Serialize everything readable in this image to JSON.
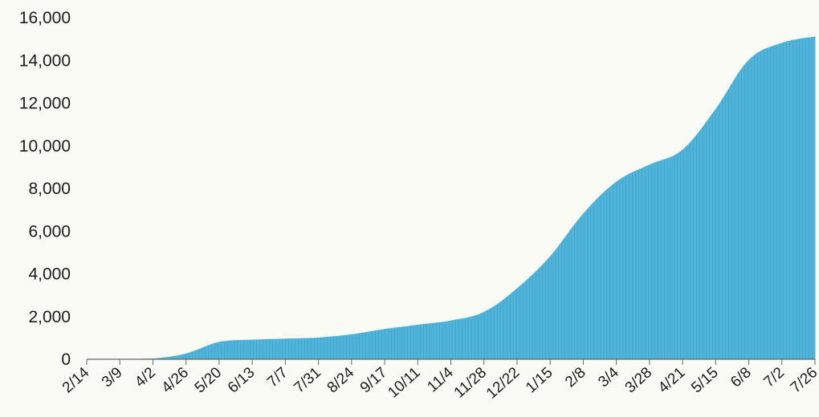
{
  "chart_data": {
    "type": "area",
    "title": "",
    "xlabel": "",
    "ylabel": "",
    "ylim": [
      0,
      16000
    ],
    "y_ticks": [
      0,
      2000,
      4000,
      6000,
      8000,
      10000,
      12000,
      14000,
      16000
    ],
    "y_tick_labels": [
      "0",
      "2,000",
      "4,000",
      "6,000",
      "8,000",
      "10,000",
      "12,000",
      "14,000",
      "16,000"
    ],
    "categories": [
      "2/14",
      "3/9",
      "4/2",
      "4/26",
      "5/20",
      "6/13",
      "7/7",
      "7/31",
      "8/24",
      "9/17",
      "10/11",
      "11/4",
      "11/28",
      "12/22",
      "1/15",
      "2/8",
      "3/4",
      "3/28",
      "4/21",
      "5/15",
      "6/8",
      "7/2",
      "7/26"
    ],
    "series": [
      {
        "values": [
          0,
          0,
          20,
          250,
          800,
          900,
          950,
          1000,
          1150,
          1400,
          1600,
          1800,
          2200,
          3300,
          4800,
          6800,
          8300,
          9100,
          9800,
          11700,
          14000,
          14800,
          15100
        ]
      }
    ],
    "fill_color": "#4fb3d9",
    "grid": false,
    "legend": "none"
  }
}
